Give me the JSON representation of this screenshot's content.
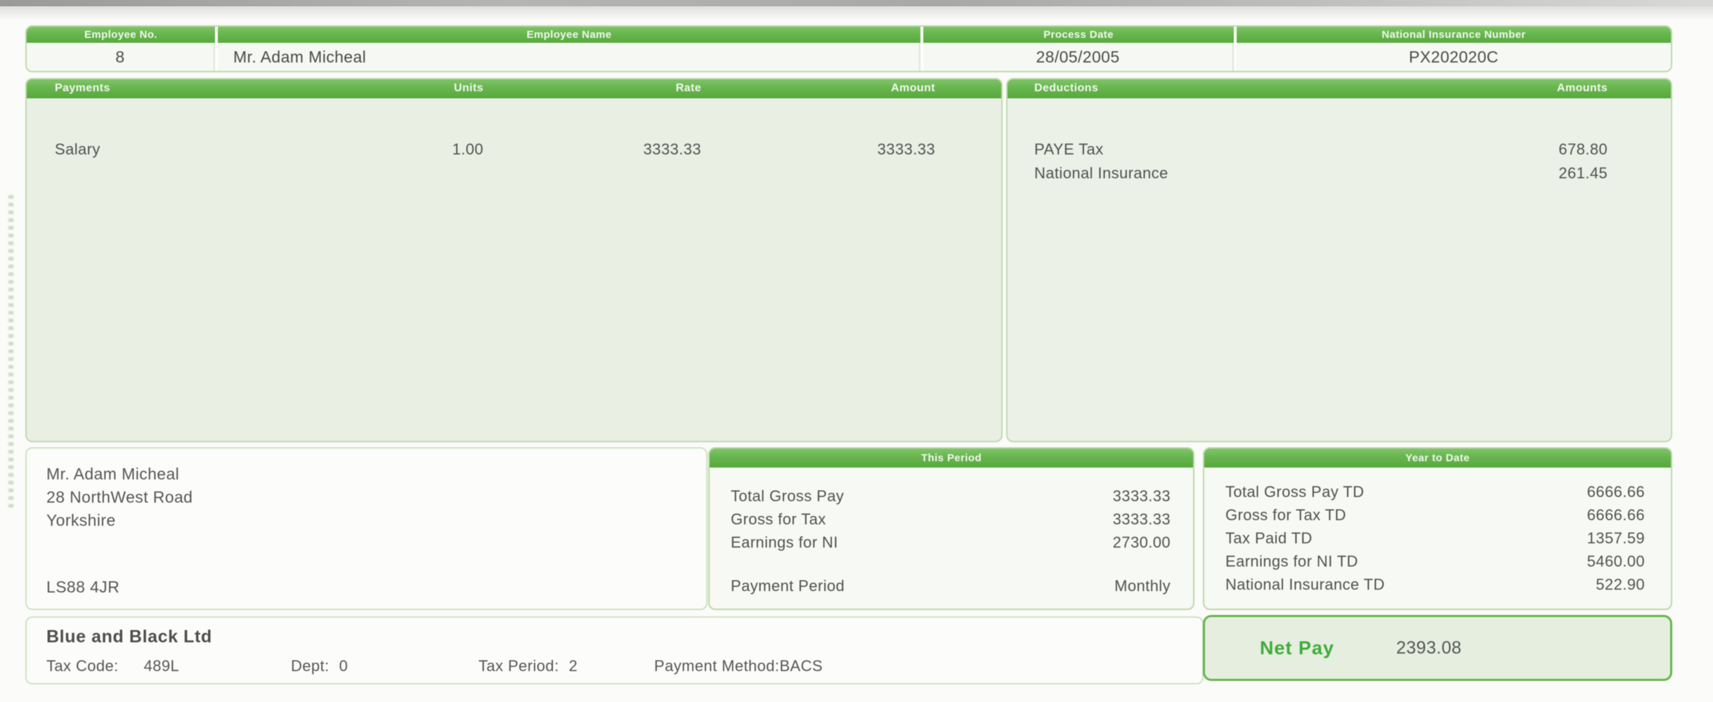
{
  "colors": {
    "header_green": "#66b44d",
    "panel_fill": "#e9efe3",
    "border_green": "#bcd9aa",
    "net_pay_green": "#3dad38",
    "text_dark": "#4c4c4c"
  },
  "employee_row": {
    "employee_no_label": "Employee No.",
    "employee_no": "8",
    "employee_name_label": "Employee Name",
    "employee_name": "Mr. Adam Micheal",
    "process_date_label": "Process Date",
    "process_date": "28/05/2005",
    "ni_number_label": "National Insurance Number",
    "ni_number": "PX202020C"
  },
  "payments": {
    "headers": [
      "Payments",
      "Units",
      "Rate",
      "Amount"
    ],
    "rows": [
      {
        "name": "Salary",
        "units": "1.00",
        "rate": "3333.33",
        "amount": "3333.33"
      }
    ]
  },
  "deductions": {
    "headers": [
      "Deductions",
      "Amounts"
    ],
    "rows": [
      {
        "name": "PAYE Tax",
        "amount": "678.80"
      },
      {
        "name": "National Insurance",
        "amount": "261.45"
      }
    ]
  },
  "address": {
    "lines": [
      "Mr. Adam Micheal",
      "28 NorthWest Road",
      "Yorkshire"
    ],
    "postcode": "LS88 4JR"
  },
  "this_period": {
    "title": "This Period",
    "rows": [
      {
        "label": "Total Gross Pay",
        "value": "3333.33"
      },
      {
        "label": "Gross for Tax",
        "value": "3333.33"
      },
      {
        "label": "Earnings for NI",
        "value": "2730.00"
      }
    ],
    "payment_period_label": "Payment Period",
    "payment_period_value": "Monthly"
  },
  "year_to_date": {
    "title": "Year to Date",
    "rows": [
      {
        "label": "Total Gross Pay TD",
        "value": "6666.66"
      },
      {
        "label": "Gross for Tax TD",
        "value": "6666.66"
      },
      {
        "label": "Tax Paid TD",
        "value": "1357.59"
      },
      {
        "label": "Earnings for NI TD",
        "value": "5460.00"
      },
      {
        "label": "National Insurance TD",
        "value": "522.90"
      }
    ]
  },
  "footer": {
    "company_name": "Blue and Black Ltd",
    "tax_code_label": "Tax Code:",
    "tax_code": "489L",
    "dept_label": "Dept:",
    "dept": "0",
    "tax_period_label": "Tax Period:",
    "tax_period": "2",
    "payment_method_label": "Payment Method:",
    "payment_method": "BACS"
  },
  "net_pay": {
    "label": "Net Pay",
    "value": "2393.08"
  }
}
